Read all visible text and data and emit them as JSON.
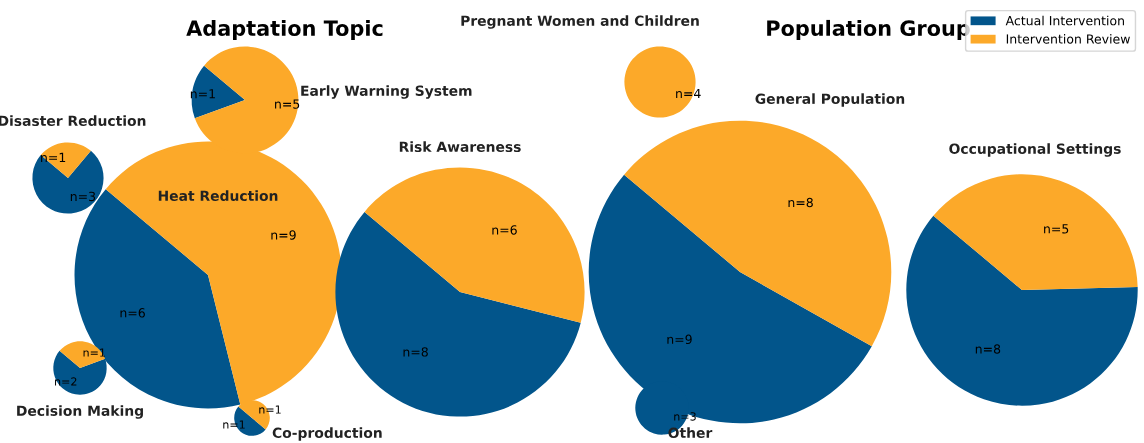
{
  "chart_data": [
    {
      "type": "pie",
      "title": "Heat Reduction",
      "annotations": [
        "Adaptation Topic"
      ],
      "legend": "top right",
      "categories": [
        "Actual Intervention",
        "Intervention Review"
      ],
      "values": [
        6,
        9
      ],
      "value_labels": [
        "n=6",
        "n=9"
      ],
      "colors": [
        "#02558b",
        "#fca929"
      ]
    },
    {
      "type": "pie",
      "title": "Early Warning System",
      "values": [
        1,
        5
      ],
      "value_labels": [
        "n=1",
        "n=5"
      ],
      "colors": [
        "#02558b",
        "#fca929"
      ]
    },
    {
      "type": "pie",
      "title": "Disaster Reduction",
      "values": [
        3,
        1
      ],
      "value_labels": [
        "n=3",
        "n=1"
      ],
      "colors": [
        "#02558b",
        "#fca929"
      ]
    },
    {
      "type": "pie",
      "title": "Risk Awareness",
      "values": [
        8,
        6
      ],
      "value_labels": [
        "n=8",
        "n=6"
      ],
      "colors": [
        "#02558b",
        "#fca929"
      ]
    },
    {
      "type": "pie",
      "title": "Decision Making",
      "values": [
        2,
        1
      ],
      "value_labels": [
        "n=2",
        "n=1"
      ],
      "colors": [
        "#02558b",
        "#fca929"
      ]
    },
    {
      "type": "pie",
      "title": "Co-production",
      "values": [
        1,
        1
      ],
      "value_labels": [
        "n=1",
        "n=1"
      ],
      "colors": [
        "#02558b",
        "#fca929"
      ]
    },
    {
      "type": "pie",
      "title": "Pregnant Women and Children",
      "annotations": [
        "Population Group"
      ],
      "values": [
        0,
        4
      ],
      "value_labels": [
        null,
        "n=4"
      ],
      "colors": [
        "#02558b",
        "#fca929"
      ]
    },
    {
      "type": "pie",
      "title": "General Population",
      "values": [
        9,
        8
      ],
      "value_labels": [
        "n=9",
        "n=8"
      ],
      "colors": [
        "#02558b",
        "#fca929"
      ]
    },
    {
      "type": "pie",
      "title": "Other",
      "values": [
        3,
        0
      ],
      "value_labels": [
        "n=3",
        null
      ],
      "colors": [
        "#02558b",
        "#fca929"
      ]
    },
    {
      "type": "pie",
      "title": "Occupational Settings",
      "values": [
        8,
        5
      ],
      "value_labels": [
        "n=8",
        "n=5"
      ],
      "colors": [
        "#02558b",
        "#fca929"
      ]
    }
  ]
}
